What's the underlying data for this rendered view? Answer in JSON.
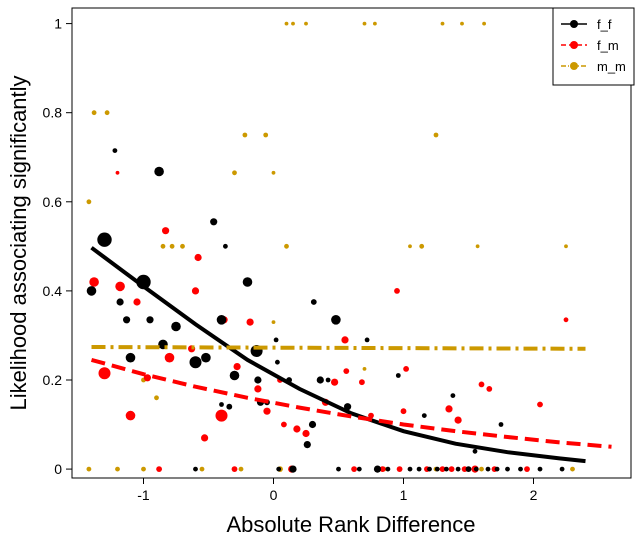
{
  "chart_data": {
    "type": "scatter",
    "xlabel": "Absolute Rank Difference",
    "ylabel": "Likelihood associating significantly",
    "xlim": [
      -1.55,
      2.75
    ],
    "ylim": [
      -0.02,
      1.035
    ],
    "x_ticks": [
      -1,
      0,
      1,
      2
    ],
    "x_tick_labels": [
      "-1",
      "0",
      "1",
      "2"
    ],
    "y_ticks": [
      0,
      0.2,
      0.4,
      0.6,
      0.8,
      1
    ],
    "y_tick_labels": [
      "0",
      "0.2",
      "0.4",
      "0.6",
      "0.8",
      "1"
    ],
    "grid": false,
    "legend_position": "top-right",
    "series": [
      {
        "name": "f_f",
        "color": "#000000",
        "line_style": "solid",
        "fit_line": [
          [
            -1.4,
            0.497
          ],
          [
            -1.0,
            0.41
          ],
          [
            -0.6,
            0.325
          ],
          [
            -0.2,
            0.245
          ],
          [
            0.2,
            0.18
          ],
          [
            0.6,
            0.125
          ],
          [
            1.0,
            0.085
          ],
          [
            1.4,
            0.057
          ],
          [
            1.8,
            0.038
          ],
          [
            2.2,
            0.024
          ],
          [
            2.4,
            0.018
          ]
        ],
        "points": [
          {
            "x": -1.3,
            "y": 0.515,
            "s": 3
          },
          {
            "x": -1.4,
            "y": 0.4,
            "s": 2
          },
          {
            "x": -1.22,
            "y": 0.715,
            "s": 1
          },
          {
            "x": -0.88,
            "y": 0.668,
            "s": 2
          },
          {
            "x": -1.0,
            "y": 0.42,
            "s": 3
          },
          {
            "x": -1.18,
            "y": 0.375,
            "s": 1.5
          },
          {
            "x": -1.13,
            "y": 0.335,
            "s": 1.5
          },
          {
            "x": -0.95,
            "y": 0.335,
            "s": 1.5
          },
          {
            "x": -0.85,
            "y": 0.28,
            "s": 2
          },
          {
            "x": -0.75,
            "y": 0.32,
            "s": 2
          },
          {
            "x": -1.1,
            "y": 0.25,
            "s": 2
          },
          {
            "x": -0.6,
            "y": 0.24,
            "s": 2.5
          },
          {
            "x": -0.52,
            "y": 0.25,
            "s": 2
          },
          {
            "x": -0.46,
            "y": 0.555,
            "s": 1.5
          },
          {
            "x": -0.37,
            "y": 0.5,
            "s": 1
          },
          {
            "x": -0.4,
            "y": 0.335,
            "s": 2
          },
          {
            "x": -0.3,
            "y": 0.21,
            "s": 2
          },
          {
            "x": -0.2,
            "y": 0.42,
            "s": 2
          },
          {
            "x": -0.12,
            "y": 0.2,
            "s": 1.5
          },
          {
            "x": -0.1,
            "y": 0.15,
            "s": 1.5
          },
          {
            "x": -0.4,
            "y": 0.145,
            "s": 1
          },
          {
            "x": -0.34,
            "y": 0.14,
            "s": 1.2
          },
          {
            "x": -0.05,
            "y": 0.15,
            "s": 1.2
          },
          {
            "x": -0.13,
            "y": 0.265,
            "s": 2.5
          },
          {
            "x": 0.02,
            "y": 0.29,
            "s": 1
          },
          {
            "x": 0.03,
            "y": 0.24,
            "s": 1
          },
          {
            "x": 0.12,
            "y": 0.2,
            "s": 1.2
          },
          {
            "x": 0.31,
            "y": 0.375,
            "s": 1.2
          },
          {
            "x": 0.36,
            "y": 0.2,
            "s": 1.5
          },
          {
            "x": 0.42,
            "y": 0.2,
            "s": 1
          },
          {
            "x": 0.26,
            "y": 0.055,
            "s": 1.5
          },
          {
            "x": 0.3,
            "y": 0.1,
            "s": 1.5
          },
          {
            "x": 0.48,
            "y": 0.335,
            "s": 2
          },
          {
            "x": 0.57,
            "y": 0.14,
            "s": 1.5
          },
          {
            "x": 0.72,
            "y": 0.29,
            "s": 1
          },
          {
            "x": 0.96,
            "y": 0.21,
            "s": 1
          },
          {
            "x": 1.16,
            "y": 0.12,
            "s": 1
          },
          {
            "x": 1.38,
            "y": 0.165,
            "s": 1
          },
          {
            "x": 1.55,
            "y": 0.04,
            "s": 1
          },
          {
            "x": 1.75,
            "y": 0.1,
            "s": 1
          },
          {
            "x": -0.6,
            "y": 0.0,
            "s": 1
          },
          {
            "x": 0.04,
            "y": 0.0,
            "s": 1
          },
          {
            "x": 0.15,
            "y": 0.0,
            "s": 1.5
          },
          {
            "x": 0.5,
            "y": 0.0,
            "s": 1
          },
          {
            "x": 0.66,
            "y": 0.0,
            "s": 1
          },
          {
            "x": 0.8,
            "y": 0.0,
            "s": 1.5
          },
          {
            "x": 0.88,
            "y": 0.0,
            "s": 1
          },
          {
            "x": 1.05,
            "y": 0.0,
            "s": 1
          },
          {
            "x": 1.12,
            "y": 0.0,
            "s": 1
          },
          {
            "x": 1.2,
            "y": 0.0,
            "s": 1
          },
          {
            "x": 1.26,
            "y": 0.0,
            "s": 1
          },
          {
            "x": 1.33,
            "y": 0.0,
            "s": 1
          },
          {
            "x": 1.42,
            "y": 0.0,
            "s": 1
          },
          {
            "x": 1.5,
            "y": 0.0,
            "s": 1.2
          },
          {
            "x": 1.56,
            "y": 0.0,
            "s": 1
          },
          {
            "x": 1.65,
            "y": 0.0,
            "s": 1
          },
          {
            "x": 1.72,
            "y": 0.0,
            "s": 1
          },
          {
            "x": 1.8,
            "y": 0.0,
            "s": 1
          },
          {
            "x": 1.9,
            "y": 0.0,
            "s": 1
          },
          {
            "x": 2.05,
            "y": 0.0,
            "s": 1
          },
          {
            "x": 2.22,
            "y": 0.0,
            "s": 1
          }
        ]
      },
      {
        "name": "f_m",
        "color": "#ff0000",
        "line_style": "dashed",
        "fit_line": [
          [
            -1.4,
            0.245
          ],
          [
            -1.0,
            0.213
          ],
          [
            -0.6,
            0.185
          ],
          [
            -0.2,
            0.16
          ],
          [
            0.2,
            0.138
          ],
          [
            0.6,
            0.118
          ],
          [
            1.0,
            0.1
          ],
          [
            1.4,
            0.085
          ],
          [
            1.8,
            0.072
          ],
          [
            2.2,
            0.06
          ],
          [
            2.6,
            0.05
          ]
        ],
        "points": [
          {
            "x": -1.38,
            "y": 0.42,
            "s": 2
          },
          {
            "x": -1.3,
            "y": 0.215,
            "s": 2.5
          },
          {
            "x": -1.2,
            "y": 0.665,
            "s": 0.8
          },
          {
            "x": -1.18,
            "y": 0.41,
            "s": 2
          },
          {
            "x": -1.1,
            "y": 0.12,
            "s": 2
          },
          {
            "x": -1.05,
            "y": 0.375,
            "s": 1.5
          },
          {
            "x": -0.97,
            "y": 0.205,
            "s": 1.5
          },
          {
            "x": -0.83,
            "y": 0.535,
            "s": 1.5
          },
          {
            "x": -0.8,
            "y": 0.25,
            "s": 2
          },
          {
            "x": -0.63,
            "y": 0.27,
            "s": 1.5
          },
          {
            "x": -0.6,
            "y": 0.4,
            "s": 1.5
          },
          {
            "x": -0.58,
            "y": 0.475,
            "s": 1.5
          },
          {
            "x": -0.53,
            "y": 0.07,
            "s": 1.5
          },
          {
            "x": -0.4,
            "y": 0.12,
            "s": 2.5
          },
          {
            "x": -0.38,
            "y": 0.335,
            "s": 1.5
          },
          {
            "x": -0.28,
            "y": 0.23,
            "s": 1.5
          },
          {
            "x": -0.18,
            "y": 0.33,
            "s": 1.5
          },
          {
            "x": -0.12,
            "y": 0.18,
            "s": 1.5
          },
          {
            "x": -0.05,
            "y": 0.13,
            "s": 1.5
          },
          {
            "x": 0.05,
            "y": 0.2,
            "s": 1.2
          },
          {
            "x": 0.08,
            "y": 0.1,
            "s": 1.2
          },
          {
            "x": 0.18,
            "y": 0.09,
            "s": 1.5
          },
          {
            "x": 0.25,
            "y": 0.08,
            "s": 1.5
          },
          {
            "x": 0.4,
            "y": 0.15,
            "s": 1.5
          },
          {
            "x": 0.47,
            "y": 0.195,
            "s": 1.5
          },
          {
            "x": 0.56,
            "y": 0.22,
            "s": 1.2
          },
          {
            "x": 0.55,
            "y": 0.29,
            "s": 1.5
          },
          {
            "x": 0.68,
            "y": 0.195,
            "s": 1.2
          },
          {
            "x": 0.75,
            "y": 0.12,
            "s": 1.2
          },
          {
            "x": 0.95,
            "y": 0.4,
            "s": 1.2
          },
          {
            "x": 1.02,
            "y": 0.225,
            "s": 1.2
          },
          {
            "x": 1.0,
            "y": 0.13,
            "s": 1.2
          },
          {
            "x": 1.35,
            "y": 0.135,
            "s": 1.5
          },
          {
            "x": 1.42,
            "y": 0.11,
            "s": 1.5
          },
          {
            "x": 1.6,
            "y": 0.19,
            "s": 1.2
          },
          {
            "x": 1.66,
            "y": 0.18,
            "s": 1.2
          },
          {
            "x": 2.05,
            "y": 0.145,
            "s": 1.2
          },
          {
            "x": 2.25,
            "y": 0.335,
            "s": 1
          },
          {
            "x": -0.88,
            "y": 0.0,
            "s": 1.2
          },
          {
            "x": -0.3,
            "y": 0.0,
            "s": 1.2
          },
          {
            "x": 0.14,
            "y": 0.0,
            "s": 1.5
          },
          {
            "x": 0.62,
            "y": 0.0,
            "s": 1.2
          },
          {
            "x": 0.84,
            "y": 0.0,
            "s": 1.2
          },
          {
            "x": 0.97,
            "y": 0.0,
            "s": 1.2
          },
          {
            "x": 1.18,
            "y": 0.0,
            "s": 1.2
          },
          {
            "x": 1.3,
            "y": 0.0,
            "s": 1.2
          },
          {
            "x": 1.37,
            "y": 0.0,
            "s": 1.2
          },
          {
            "x": 1.47,
            "y": 0.0,
            "s": 1.2
          },
          {
            "x": 1.55,
            "y": 0.0,
            "s": 1.5
          },
          {
            "x": 1.7,
            "y": 0.0,
            "s": 1.2
          },
          {
            "x": 1.95,
            "y": 0.0,
            "s": 1.2
          }
        ]
      },
      {
        "name": "m_m",
        "color": "#cc9900",
        "line_style": "dotdash",
        "fit_line": [
          [
            -1.4,
            0.274
          ],
          [
            2.4,
            0.27
          ]
        ],
        "points": [
          {
            "x": -1.42,
            "y": 0.6,
            "s": 1
          },
          {
            "x": -1.38,
            "y": 0.8,
            "s": 1
          },
          {
            "x": -1.28,
            "y": 0.8,
            "s": 1
          },
          {
            "x": -0.9,
            "y": 0.16,
            "s": 1
          },
          {
            "x": -1.0,
            "y": 0.2,
            "s": 1
          },
          {
            "x": -0.85,
            "y": 0.5,
            "s": 1
          },
          {
            "x": -0.78,
            "y": 0.5,
            "s": 1
          },
          {
            "x": -0.7,
            "y": 0.5,
            "s": 1
          },
          {
            "x": -0.4,
            "y": 0.335,
            "s": 1.5
          },
          {
            "x": -0.3,
            "y": 0.665,
            "s": 1
          },
          {
            "x": -0.22,
            "y": 0.75,
            "s": 1
          },
          {
            "x": -0.06,
            "y": 0.75,
            "s": 1
          },
          {
            "x": 0.1,
            "y": 0.5,
            "s": 1
          },
          {
            "x": 0.1,
            "y": 1.0,
            "s": 0.8
          },
          {
            "x": 0.15,
            "y": 1.0,
            "s": 0.8
          },
          {
            "x": 0.25,
            "y": 1.0,
            "s": 0.8
          },
          {
            "x": 0.7,
            "y": 1.0,
            "s": 0.8
          },
          {
            "x": 0.78,
            "y": 1.0,
            "s": 0.8
          },
          {
            "x": 1.3,
            "y": 1.0,
            "s": 0.8
          },
          {
            "x": 1.45,
            "y": 1.0,
            "s": 0.8
          },
          {
            "x": 1.62,
            "y": 1.0,
            "s": 0.8
          },
          {
            "x": 1.25,
            "y": 0.75,
            "s": 1
          },
          {
            "x": 1.05,
            "y": 0.5,
            "s": 0.8
          },
          {
            "x": 1.14,
            "y": 0.5,
            "s": 1
          },
          {
            "x": 1.57,
            "y": 0.5,
            "s": 0.8
          },
          {
            "x": 2.25,
            "y": 0.5,
            "s": 0.8
          },
          {
            "x": 0.0,
            "y": 0.665,
            "s": 0.8
          },
          {
            "x": 0.0,
            "y": 0.33,
            "s": 0.8
          },
          {
            "x": 0.7,
            "y": 0.225,
            "s": 0.8
          },
          {
            "x": -1.42,
            "y": 0.0,
            "s": 1
          },
          {
            "x": -1.2,
            "y": 0.0,
            "s": 1
          },
          {
            "x": -1.0,
            "y": 0.0,
            "s": 1
          },
          {
            "x": -0.55,
            "y": 0.0,
            "s": 1
          },
          {
            "x": -0.25,
            "y": 0.0,
            "s": 1
          },
          {
            "x": 0.05,
            "y": 0.0,
            "s": 1.2
          },
          {
            "x": 0.85,
            "y": 0.0,
            "s": 1
          },
          {
            "x": 1.25,
            "y": 0.0,
            "s": 1
          },
          {
            "x": 1.6,
            "y": 0.0,
            "s": 1
          },
          {
            "x": 2.3,
            "y": 0.0,
            "s": 1
          }
        ]
      }
    ]
  }
}
